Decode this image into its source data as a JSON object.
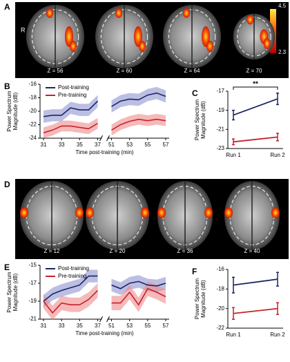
{
  "panels": {
    "a": {
      "label": "A",
      "side": "R",
      "slices": [
        "Z = 56",
        "Z = 60",
        "Z = 64",
        "Z = 70"
      ],
      "colorbar": {
        "max": "4.5",
        "min": "2.3"
      }
    },
    "d": {
      "label": "D",
      "slices": [
        "Z = 12",
        "Z = 20",
        "Z = 36",
        "Z = 40"
      ]
    }
  },
  "chart_data": [
    {
      "type": "line",
      "label": "B",
      "x_label": "Time post-training (min)",
      "y_label": "Power Spectrum Magnitude (dB)",
      "x": [
        31,
        32,
        33,
        34,
        35,
        36,
        37,
        51,
        52,
        53,
        54,
        55,
        56,
        57
      ],
      "xlim": [
        31,
        57
      ],
      "xbreak": [
        37,
        51
      ],
      "xticks": [
        31,
        33,
        35,
        37,
        51,
        53,
        55,
        57
      ],
      "ylim": [
        -24,
        -16
      ],
      "yticks": [
        -16,
        -18,
        -20,
        -22,
        -24
      ],
      "legend": "upper left",
      "series": [
        {
          "name": "Post-training",
          "color": "#1c2463",
          "band_color": "#8d94d0",
          "values": [
            -20.8,
            -20.6,
            -20.6,
            -19.5,
            -19.8,
            -19.8,
            -18.5,
            -19.3,
            -18.5,
            -18.2,
            -18.3,
            -17.6,
            -17.3,
            -17.8
          ],
          "errors": [
            0.9,
            0.9,
            0.9,
            0.9,
            0.9,
            0.9,
            0.9,
            0.9,
            0.9,
            0.9,
            0.9,
            0.9,
            0.9,
            0.9
          ]
        },
        {
          "name": "Pre-training",
          "color": "#c8202a",
          "band_color": "#ef8a8a",
          "values": [
            -23.2,
            -22.8,
            -22.2,
            -22.2,
            -22.4,
            -22.6,
            -21.8,
            -22.8,
            -22.0,
            -21.5,
            -21.2,
            -21.4,
            -21.2,
            -21.4
          ],
          "errors": [
            0.8,
            0.8,
            0.8,
            0.8,
            0.8,
            0.8,
            0.8,
            0.8,
            0.8,
            0.8,
            0.8,
            0.8,
            0.8,
            0.8
          ]
        }
      ]
    },
    {
      "type": "dots",
      "label": "C",
      "y_label": "Power Spectrum Magnitude (dB)",
      "categories": [
        "Run 1",
        "Run 2"
      ],
      "ylim": [
        -23,
        -17
      ],
      "yticks": [
        -17,
        -19,
        -21,
        -23
      ],
      "annotation": "**",
      "series": [
        {
          "name": "Post-training",
          "color": "#1c2463",
          "values": [
            -19.5,
            -17.8
          ],
          "errors": [
            0.5,
            0.6
          ]
        },
        {
          "name": "Pre-training",
          "color": "#c8202a",
          "values": [
            -22.3,
            -21.8
          ],
          "errors": [
            0.3,
            0.4
          ]
        }
      ]
    },
    {
      "type": "line",
      "label": "E",
      "x_label": "Time post-training (min)",
      "y_label": "Power Spectrum Magnitude (dB)",
      "x": [
        31,
        32,
        33,
        34,
        35,
        36,
        37,
        51,
        52,
        53,
        54,
        55,
        56,
        57
      ],
      "xlim": [
        31,
        57
      ],
      "xbreak": [
        37,
        51
      ],
      "xticks": [
        31,
        33,
        35,
        37,
        51,
        53,
        55,
        57
      ],
      "ylim": [
        -21,
        -15
      ],
      "yticks": [
        -15,
        -17,
        -19,
        -21
      ],
      "legend": "upper left",
      "series": [
        {
          "name": "Post-training",
          "color": "#1c2463",
          "band_color": "#8d94d0",
          "values": [
            -19.0,
            -18.2,
            -17.8,
            -17.5,
            -17.2,
            -16.2,
            -16.2,
            -17.2,
            -17.6,
            -17.0,
            -16.8,
            -17.2,
            -17.3,
            -17.0
          ],
          "errors": [
            0.7,
            0.7,
            0.7,
            0.7,
            0.7,
            0.7,
            0.7,
            0.7,
            0.7,
            0.7,
            0.7,
            0.7,
            0.7,
            0.7
          ]
        },
        {
          "name": "Pre-training",
          "color": "#c8202a",
          "band_color": "#ef8a8a",
          "values": [
            -19.0,
            -20.3,
            -19.2,
            -19.4,
            -19.4,
            -18.8,
            -17.8,
            -19.2,
            -19.2,
            -18.0,
            -19.4,
            -17.6,
            -18.0,
            -18.5
          ],
          "errors": [
            0.8,
            0.8,
            0.8,
            0.8,
            0.8,
            0.8,
            0.8,
            0.8,
            0.8,
            0.8,
            0.8,
            0.8,
            0.8,
            0.8
          ]
        }
      ]
    },
    {
      "type": "dots",
      "label": "F",
      "y_label": "Power Spectrum Magnitude (dB)",
      "categories": [
        "Run 1",
        "Run 2"
      ],
      "ylim": [
        -22,
        -16
      ],
      "yticks": [
        -16,
        -18,
        -20,
        -22
      ],
      "series": [
        {
          "name": "Post-training",
          "color": "#1c2463",
          "values": [
            -17.6,
            -17.0
          ],
          "errors": [
            0.8,
            0.7
          ]
        },
        {
          "name": "Pre-training",
          "color": "#c8202a",
          "values": [
            -20.5,
            -20.0
          ],
          "errors": [
            0.6,
            0.6
          ]
        }
      ]
    }
  ]
}
